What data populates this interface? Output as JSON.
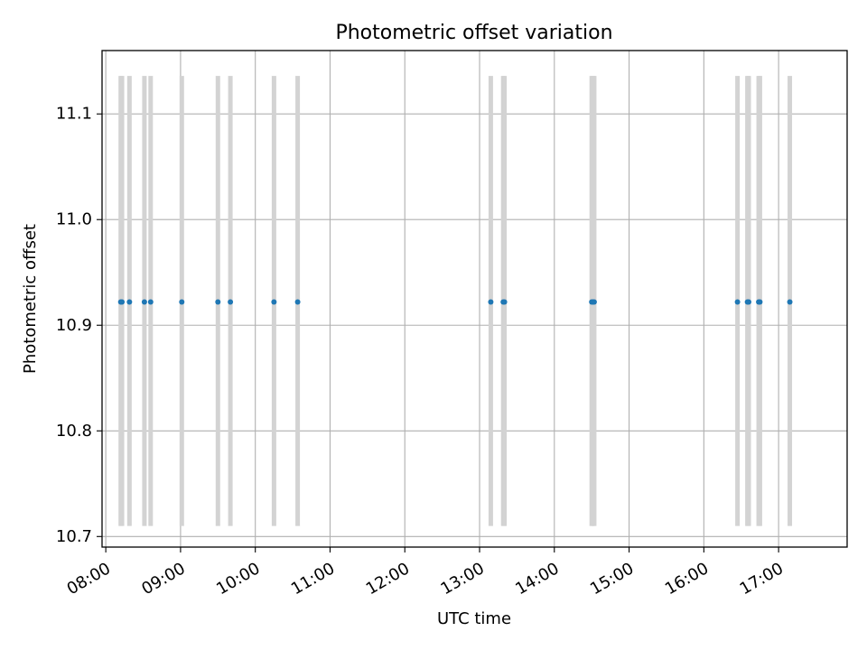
{
  "chart_data": {
    "type": "scatter",
    "title": "Photometric offset variation",
    "xlabel": "UTC time",
    "ylabel": "Photometric offset",
    "xlim": [
      "07:57",
      "17:55"
    ],
    "ylim": [
      10.69,
      11.16
    ],
    "x_ticks": [
      "08:00",
      "09:00",
      "10:00",
      "11:00",
      "12:00",
      "13:00",
      "14:00",
      "15:00",
      "16:00",
      "17:00"
    ],
    "y_ticks": [
      10.7,
      10.8,
      10.9,
      11.0,
      11.1
    ],
    "y_tick_labels": [
      "10.7",
      "10.8",
      "10.9",
      "11.0",
      "11.1"
    ],
    "grid": true,
    "errorbar_range": [
      10.71,
      11.136
    ],
    "point_color": "#1f77b4",
    "errorbar_color": "#d3d3d3",
    "points": [
      {
        "x": "08:12",
        "y": 10.922
      },
      {
        "x": "08:13",
        "y": 10.922
      },
      {
        "x": "08:19",
        "y": 10.922
      },
      {
        "x": "08:31",
        "y": 10.922
      },
      {
        "x": "08:36",
        "y": 10.922
      },
      {
        "x": "09:01",
        "y": 10.922
      },
      {
        "x": "09:30",
        "y": 10.922
      },
      {
        "x": "09:40",
        "y": 10.922
      },
      {
        "x": "10:15",
        "y": 10.922
      },
      {
        "x": "10:34",
        "y": 10.922
      },
      {
        "x": "13:09",
        "y": 10.922
      },
      {
        "x": "13:19",
        "y": 10.922
      },
      {
        "x": "13:20",
        "y": 10.922
      },
      {
        "x": "14:30",
        "y": 10.922
      },
      {
        "x": "14:31",
        "y": 10.922
      },
      {
        "x": "14:32",
        "y": 10.922
      },
      {
        "x": "16:27",
        "y": 10.922
      },
      {
        "x": "16:35",
        "y": 10.922
      },
      {
        "x": "16:36",
        "y": 10.922
      },
      {
        "x": "16:44",
        "y": 10.922
      },
      {
        "x": "16:45",
        "y": 10.922
      },
      {
        "x": "17:09",
        "y": 10.922
      }
    ]
  }
}
